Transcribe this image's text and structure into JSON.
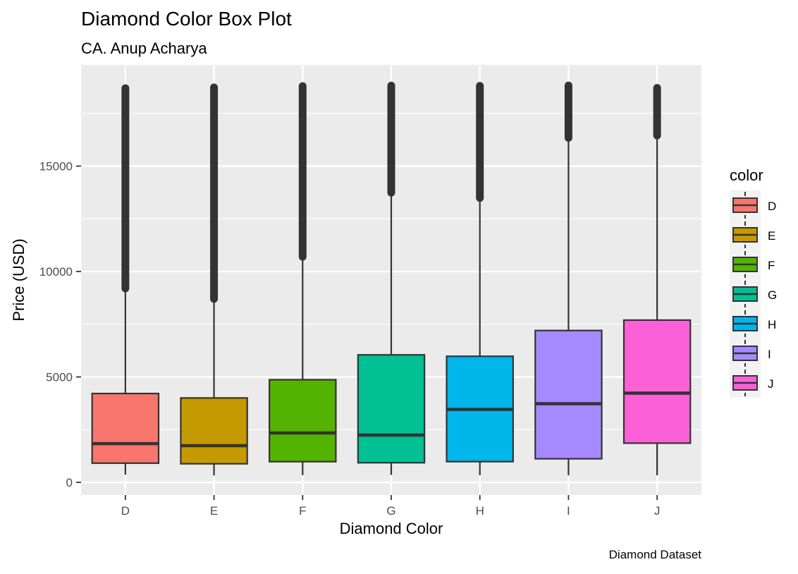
{
  "chart_data": {
    "type": "box",
    "title": "Diamond Color Box Plot",
    "subtitle": "CA. Anup Acharya",
    "caption": "Diamond Dataset",
    "xlabel": "Diamond Color",
    "ylabel": "Price (USD)",
    "ylim": [
      -600,
      19800
    ],
    "yticks": [
      0,
      5000,
      10000,
      15000
    ],
    "ytick_labels": [
      "0",
      "5000",
      "10000",
      "15000"
    ],
    "grid": true,
    "legend": {
      "title": "color",
      "placement": "right"
    },
    "categories": [
      "D",
      "E",
      "F",
      "G",
      "H",
      "I",
      "J"
    ],
    "boxes": [
      {
        "name": "D",
        "color": "#F8766D",
        "whisker_low": 357,
        "q1": 911,
        "median": 1838,
        "q3": 4214,
        "whisker_high": 9159,
        "outlier_min": 9200,
        "outlier_max": 18693
      },
      {
        "name": "E",
        "color": "#C49A00",
        "whisker_low": 326,
        "q1": 882,
        "median": 1739,
        "q3": 4003,
        "whisker_high": 8684,
        "outlier_min": 8700,
        "outlier_max": 18731
      },
      {
        "name": "F",
        "color": "#53B400",
        "whisker_low": 342,
        "q1": 982,
        "median": 2344,
        "q3": 4868,
        "whisker_high": 10686,
        "outlier_min": 10700,
        "outlier_max": 18791
      },
      {
        "name": "G",
        "color": "#00C094",
        "whisker_low": 354,
        "q1": 931,
        "median": 2242,
        "q3": 6048,
        "whisker_high": 13722,
        "outlier_min": 13740,
        "outlier_max": 18818
      },
      {
        "name": "H",
        "color": "#00B6EB",
        "whisker_low": 337,
        "q1": 984,
        "median": 3460,
        "q3": 5980,
        "whisker_high": 13471,
        "outlier_min": 13490,
        "outlier_max": 18803
      },
      {
        "name": "I",
        "color": "#A58AFF",
        "whisker_low": 334,
        "q1": 1120,
        "median": 3730,
        "q3": 7202,
        "whisker_high": 16324,
        "outlier_min": 16340,
        "outlier_max": 18823
      },
      {
        "name": "J",
        "color": "#FB61D7",
        "whisker_low": 335,
        "q1": 1860,
        "median": 4234,
        "q3": 7695,
        "whisker_high": 16436,
        "outlier_min": 16450,
        "outlier_max": 18710
      }
    ]
  }
}
